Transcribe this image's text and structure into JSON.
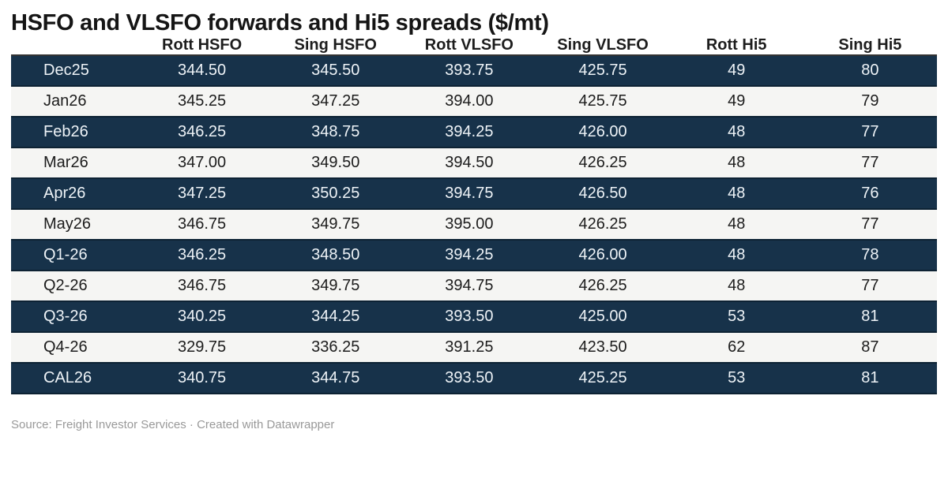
{
  "title": "HSFO and VLSFO forwards and Hi5 spreads ($/mt)",
  "footer": {
    "text": "Source: Freight Investor Services · Created with Datawrapper"
  },
  "colors": {
    "dark_row_bg": "#17324a",
    "dark_row_border": "#0d2233",
    "dark_row_text": "#eef3f7",
    "light_row_bg": "#f5f5f3",
    "light_row_text": "#1c1c1c",
    "header_text": "#1d1d1d",
    "header_rule": "#333333",
    "footer_text": "#999999"
  },
  "chart_data": {
    "type": "table",
    "title": "HSFO and VLSFO forwards and Hi5 spreads ($/mt)",
    "columns": [
      "",
      "Rott HSFO",
      "Sing HSFO",
      "Rott VLSFO",
      "Sing VLSFO",
      "Rott Hi5",
      "Sing Hi5"
    ],
    "rows": [
      {
        "label": "Dec25",
        "values": [
          "344.50",
          "345.50",
          "393.75",
          "425.75",
          "49",
          "80"
        ]
      },
      {
        "label": "Jan26",
        "values": [
          "345.25",
          "347.25",
          "394.00",
          "425.75",
          "49",
          "79"
        ]
      },
      {
        "label": "Feb26",
        "values": [
          "346.25",
          "348.75",
          "394.25",
          "426.00",
          "48",
          "77"
        ]
      },
      {
        "label": "Mar26",
        "values": [
          "347.00",
          "349.50",
          "394.50",
          "426.25",
          "48",
          "77"
        ]
      },
      {
        "label": "Apr26",
        "values": [
          "347.25",
          "350.25",
          "394.75",
          "426.50",
          "48",
          "76"
        ]
      },
      {
        "label": "May26",
        "values": [
          "346.75",
          "349.75",
          "395.00",
          "426.25",
          "48",
          "77"
        ]
      },
      {
        "label": "Q1-26",
        "values": [
          "346.25",
          "348.50",
          "394.25",
          "426.00",
          "48",
          "78"
        ]
      },
      {
        "label": "Q2-26",
        "values": [
          "346.75",
          "349.75",
          "394.75",
          "426.25",
          "48",
          "77"
        ]
      },
      {
        "label": "Q3-26",
        "values": [
          "340.25",
          "344.25",
          "393.50",
          "425.00",
          "53",
          "81"
        ]
      },
      {
        "label": "Q4-26",
        "values": [
          "329.75",
          "336.25",
          "391.25",
          "423.50",
          "62",
          "87"
        ]
      },
      {
        "label": "CAL26",
        "values": [
          "340.75",
          "344.75",
          "393.50",
          "425.25",
          "53",
          "81"
        ]
      }
    ],
    "row_stripe_pattern": "odd-rows-dark-navy"
  }
}
